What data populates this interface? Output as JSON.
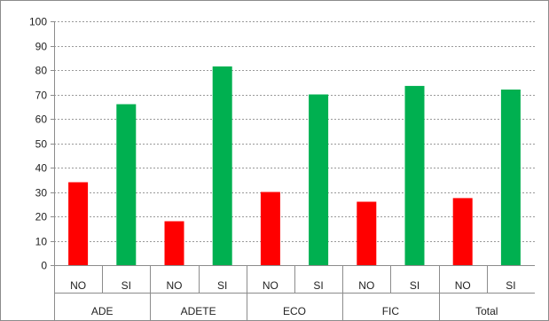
{
  "chart_data": {
    "type": "bar",
    "ylim": [
      0,
      100
    ],
    "yticks": [
      0,
      10,
      20,
      30,
      40,
      50,
      60,
      70,
      80,
      90,
      100
    ],
    "groups": [
      "ADE",
      "ADETE",
      "ECO",
      "FIC",
      "Total"
    ],
    "subcategories": [
      "NO",
      "SI"
    ],
    "values": [
      [
        34,
        66
      ],
      [
        18,
        81.5
      ],
      [
        30,
        70
      ],
      [
        26,
        73.5
      ],
      [
        27.5,
        72
      ]
    ],
    "colors": {
      "NO": "#ff0000",
      "SI": "#00b050"
    },
    "grid": true,
    "legend": "none"
  }
}
